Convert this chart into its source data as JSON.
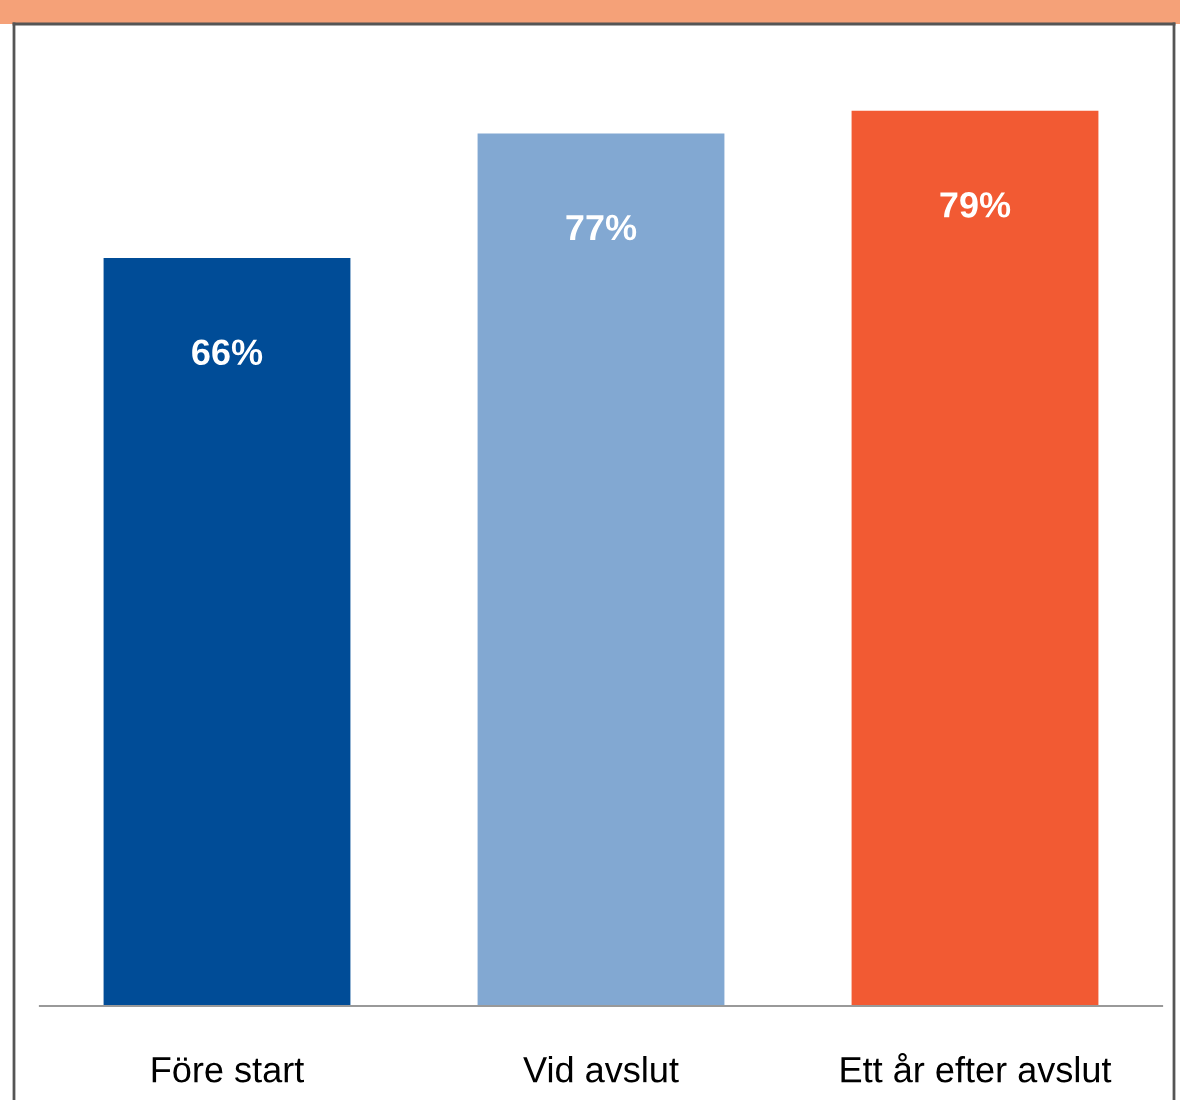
{
  "chart_data": {
    "type": "bar",
    "categories": [
      "Före start",
      "Vid avslut",
      "Ett år efter avslut"
    ],
    "values": [
      66,
      77,
      79
    ],
    "colors": [
      "#004c97",
      "#82a8d2",
      "#f25a33"
    ],
    "data_labels": true,
    "value_labels": [
      "66%",
      "77%",
      "79%"
    ],
    "grid": false,
    "legend": false
  }
}
